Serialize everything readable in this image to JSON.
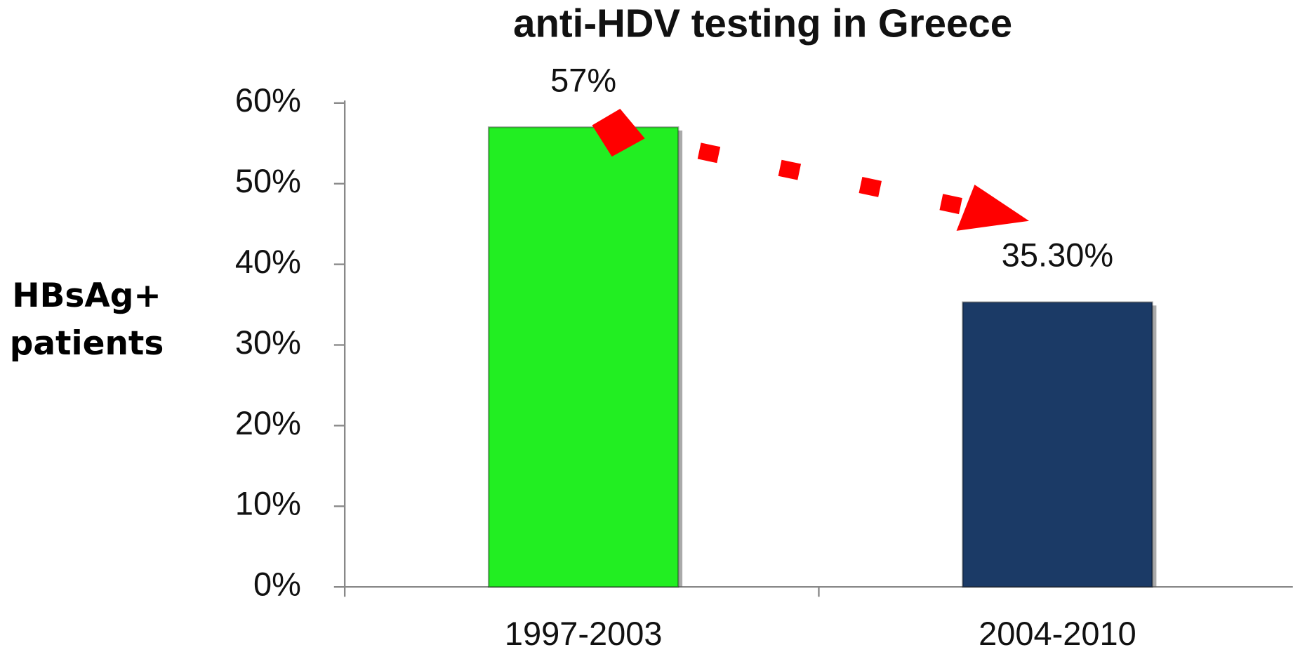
{
  "chart_data": {
    "type": "bar",
    "title": "anti-HDV testing in Greece",
    "ylabel": "HBsAg+ patients",
    "categories": [
      "1997-2003",
      "2004-2010"
    ],
    "values": [
      57,
      35.3
    ],
    "value_labels": [
      "57%",
      "35.30%"
    ],
    "colors": [
      "#22ee22",
      "#1b3a66"
    ],
    "ylim": [
      0,
      60
    ],
    "yticks": [
      {
        "value": 0,
        "label": "0%"
      },
      {
        "value": 10,
        "label": "10%"
      },
      {
        "value": 20,
        "label": "20%"
      },
      {
        "value": 30,
        "label": "30%"
      },
      {
        "value": 40,
        "label": "40%"
      },
      {
        "value": 50,
        "label": "50%"
      },
      {
        "value": 60,
        "label": "60%"
      }
    ]
  }
}
